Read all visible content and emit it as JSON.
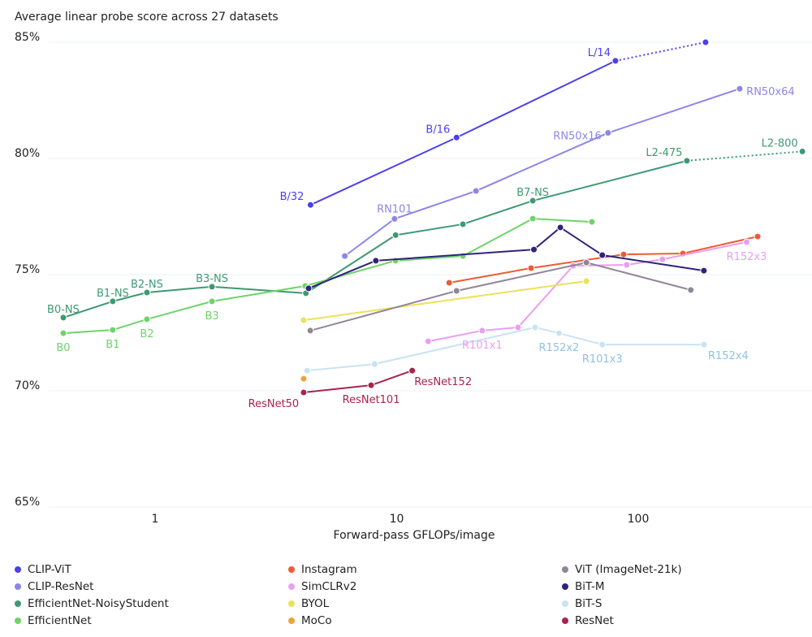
{
  "chart_data": {
    "type": "line",
    "title": "Average linear probe score across 27 datasets",
    "xlabel": "Forward-pass GFLOPs/image",
    "ylabel": "",
    "xscale": "log",
    "xlim": [
      0.36,
      525
    ],
    "ylim": [
      65,
      86.2
    ],
    "xticks": [
      {
        "value": 1,
        "label": "1"
      },
      {
        "value": 10,
        "label": "10"
      },
      {
        "value": 100,
        "label": "100"
      }
    ],
    "yticks": [
      {
        "value": 65,
        "label": "65%"
      },
      {
        "value": 70,
        "label": "70%"
      },
      {
        "value": 75,
        "label": "75%"
      },
      {
        "value": 80,
        "label": "80%"
      },
      {
        "value": 85,
        "label": "85%"
      }
    ],
    "grid": "horizontal",
    "legend": "bottom",
    "series": [
      {
        "name": "CLIP-ViT",
        "color": "#4b3ff0",
        "dotted_last": true,
        "points": [
          {
            "x": 4.4,
            "y": 78.0,
            "label": "B/32"
          },
          {
            "x": 17.7,
            "y": 80.9,
            "label": "B/16"
          },
          {
            "x": 80.5,
            "y": 84.2,
            "label": "L/14"
          },
          {
            "x": 190,
            "y": 85.0
          }
        ]
      },
      {
        "name": "CLIP-ResNet",
        "color": "#8c86ea",
        "points": [
          {
            "x": 6.1,
            "y": 75.8
          },
          {
            "x": 9.8,
            "y": 77.4,
            "label": "RN101"
          },
          {
            "x": 21.3,
            "y": 78.6
          },
          {
            "x": 75,
            "y": 81.1,
            "label": "RN50x16"
          },
          {
            "x": 263,
            "y": 83.0,
            "label": "RN50x64"
          }
        ]
      },
      {
        "name": "EfficientNet-NoisyStudent",
        "color": "#3d9a73",
        "dotted_last": true,
        "points": [
          {
            "x": 0.417,
            "y": 73.15,
            "label": "B0-NS"
          },
          {
            "x": 0.668,
            "y": 73.85,
            "label": "B1-NS"
          },
          {
            "x": 0.925,
            "y": 74.23,
            "label": "B2-NS"
          },
          {
            "x": 1.72,
            "y": 74.48,
            "label": "B3-NS"
          },
          {
            "x": 4.21,
            "y": 74.2
          },
          {
            "x": 9.9,
            "y": 76.7
          },
          {
            "x": 18.8,
            "y": 77.17
          },
          {
            "x": 36.6,
            "y": 78.18,
            "label": "B7-NS"
          },
          {
            "x": 159,
            "y": 79.9,
            "label": "L2-475"
          },
          {
            "x": 478,
            "y": 80.3,
            "label": "L2-800"
          }
        ]
      },
      {
        "name": "EfficientNet",
        "color": "#6fd36a",
        "points": [
          {
            "x": 0.417,
            "y": 72.48,
            "label": "B0"
          },
          {
            "x": 0.668,
            "y": 72.62,
            "label": "B1"
          },
          {
            "x": 0.925,
            "y": 73.08,
            "label": "B2"
          },
          {
            "x": 1.72,
            "y": 73.85,
            "label": "B3"
          },
          {
            "x": 4.18,
            "y": 74.51
          },
          {
            "x": 9.9,
            "y": 75.6
          },
          {
            "x": 18.8,
            "y": 75.8
          },
          {
            "x": 36.6,
            "y": 77.41
          },
          {
            "x": 64.3,
            "y": 77.27
          }
        ]
      },
      {
        "name": "Instagram",
        "color": "#ef5a35",
        "points": [
          {
            "x": 16.5,
            "y": 74.65
          },
          {
            "x": 36,
            "y": 75.28
          },
          {
            "x": 87,
            "y": 75.87
          },
          {
            "x": 153,
            "y": 75.91
          },
          {
            "x": 312,
            "y": 76.64
          }
        ]
      },
      {
        "name": "SimCLRv2",
        "color": "#e89ff0",
        "points": [
          {
            "x": 13.5,
            "y": 72.13
          },
          {
            "x": 22.6,
            "y": 72.59,
            "label": "R101x1"
          },
          {
            "x": 31.8,
            "y": 72.73
          },
          {
            "x": 53.8,
            "y": 75.38
          },
          {
            "x": 89.6,
            "y": 75.42
          },
          {
            "x": 126,
            "y": 75.66
          },
          {
            "x": 281,
            "y": 76.4,
            "label": "R152x3"
          }
        ]
      },
      {
        "name": "BYOL",
        "color": "#ece15a",
        "points": [
          {
            "x": 4.12,
            "y": 73.04
          },
          {
            "x": 61,
            "y": 74.72
          }
        ]
      },
      {
        "name": "MoCo",
        "color": "#f2a03a",
        "points": [
          {
            "x": 4.12,
            "y": 70.52
          }
        ]
      },
      {
        "name": "ViT (ImageNet-21k)",
        "color": "#928599",
        "points": [
          {
            "x": 4.39,
            "y": 72.59
          },
          {
            "x": 17.7,
            "y": 74.3
          },
          {
            "x": 61,
            "y": 75.52
          },
          {
            "x": 165,
            "y": 74.34
          }
        ]
      },
      {
        "name": "BiT-M",
        "color": "#2f2479",
        "points": [
          {
            "x": 4.32,
            "y": 74.41
          },
          {
            "x": 8.2,
            "y": 75.6
          },
          {
            "x": 37,
            "y": 76.08
          },
          {
            "x": 47.6,
            "y": 77.03
          },
          {
            "x": 71,
            "y": 75.84
          },
          {
            "x": 187,
            "y": 75.17
          }
        ]
      },
      {
        "name": "BiT-S",
        "color": "#c9e3f2",
        "label_color": "#8ec3e0",
        "points": [
          {
            "x": 4.26,
            "y": 70.87
          },
          {
            "x": 8.1,
            "y": 71.15
          },
          {
            "x": 37.4,
            "y": 72.73
          },
          {
            "x": 47,
            "y": 72.48,
            "label": "R152x2"
          },
          {
            "x": 71,
            "y": 71.99,
            "label": "R101x3"
          },
          {
            "x": 187,
            "y": 71.99,
            "label": "R152x4"
          }
        ]
      },
      {
        "name": "ResNet",
        "color": "#a8244a",
        "points": [
          {
            "x": 4.12,
            "y": 69.93,
            "label": "ResNet50"
          },
          {
            "x": 7.84,
            "y": 70.24,
            "label": "ResNet101"
          },
          {
            "x": 11.6,
            "y": 70.87,
            "label": "ResNet152"
          }
        ]
      }
    ]
  }
}
